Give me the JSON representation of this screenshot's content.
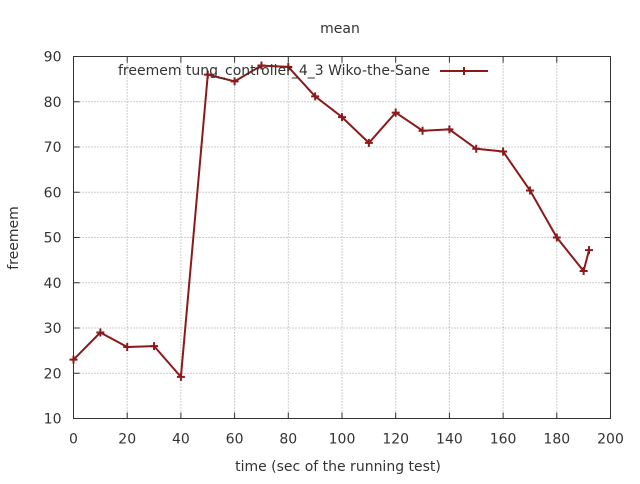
{
  "chart_data": {
    "type": "line",
    "title": "mean",
    "xlabel": "time (sec of the running test)",
    "ylabel": "freemem",
    "xlim": [
      0,
      200
    ],
    "ylim": [
      10,
      90
    ],
    "x_ticks": [
      0,
      20,
      40,
      60,
      80,
      100,
      120,
      140,
      160,
      180,
      200
    ],
    "y_ticks": [
      10,
      20,
      30,
      40,
      50,
      60,
      70,
      80,
      90
    ],
    "grid": true,
    "legend_position": "top-right",
    "series": [
      {
        "name": "freemem tung_controller_4_3 Wiko-the-Sane",
        "color": "#8b1a1a",
        "marker": "plus",
        "x": [
          0,
          10,
          20,
          30,
          40,
          50,
          60,
          70,
          80,
          90,
          100,
          110,
          120,
          130,
          140,
          150,
          160,
          170,
          180,
          190,
          192
        ],
        "y": [
          23,
          29,
          25.8,
          26,
          19.2,
          86,
          84.5,
          88,
          87.7,
          81.2,
          76.6,
          70.9,
          77.6,
          73.6,
          73.9,
          69.6,
          69,
          60.4,
          50,
          42.6,
          47.2
        ]
      }
    ]
  }
}
